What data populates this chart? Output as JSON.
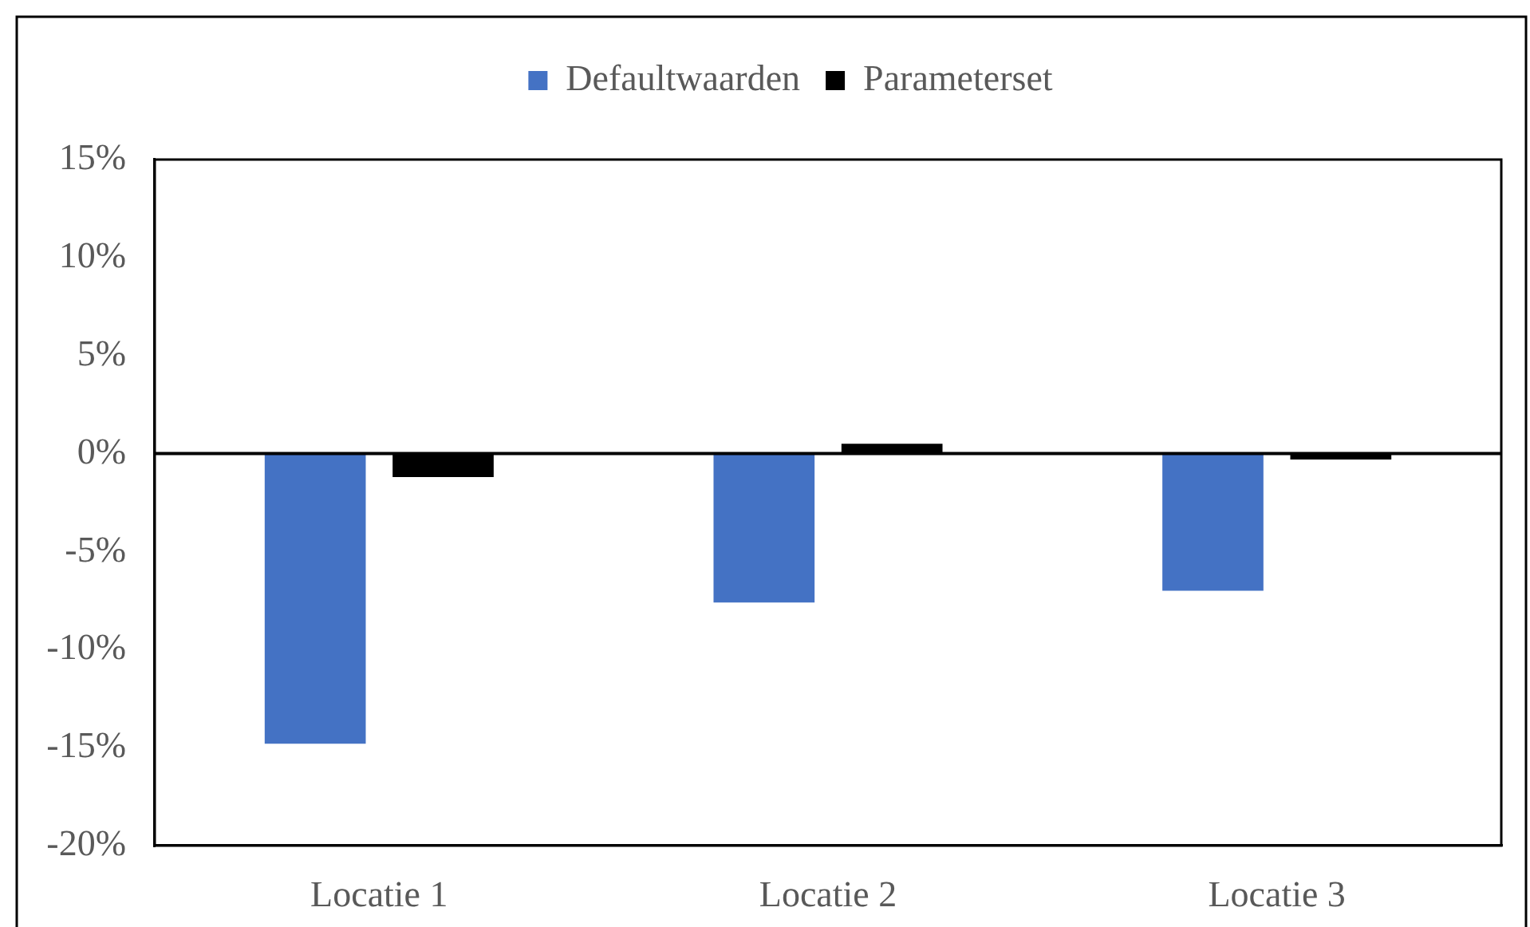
{
  "chart_data": {
    "type": "bar",
    "categories": [
      "Locatie 1",
      "Locatie 2",
      "Locatie 3"
    ],
    "series": [
      {
        "name": "Defaultwaarden",
        "color": "#4472c4",
        "values": [
          -14.8,
          -7.6,
          -7.0
        ]
      },
      {
        "name": "Parameterset",
        "color": "#000000",
        "values": [
          -1.2,
          0.5,
          -0.3
        ]
      }
    ],
    "ylim": [
      -20,
      15
    ],
    "yticks": [
      {
        "value": -20,
        "label": "-20%"
      },
      {
        "value": -15,
        "label": "-15%"
      },
      {
        "value": -10,
        "label": "-10%"
      },
      {
        "value": -5,
        "label": "-5%"
      },
      {
        "value": 0,
        "label": "0%"
      },
      {
        "value": 5,
        "label": "5%"
      },
      {
        "value": 10,
        "label": "10%"
      },
      {
        "value": 15,
        "label": "15%"
      }
    ],
    "ref_lines": [
      {
        "axis": "y",
        "value": 0,
        "color": "#000000"
      }
    ],
    "grid": false,
    "legend": "top"
  }
}
